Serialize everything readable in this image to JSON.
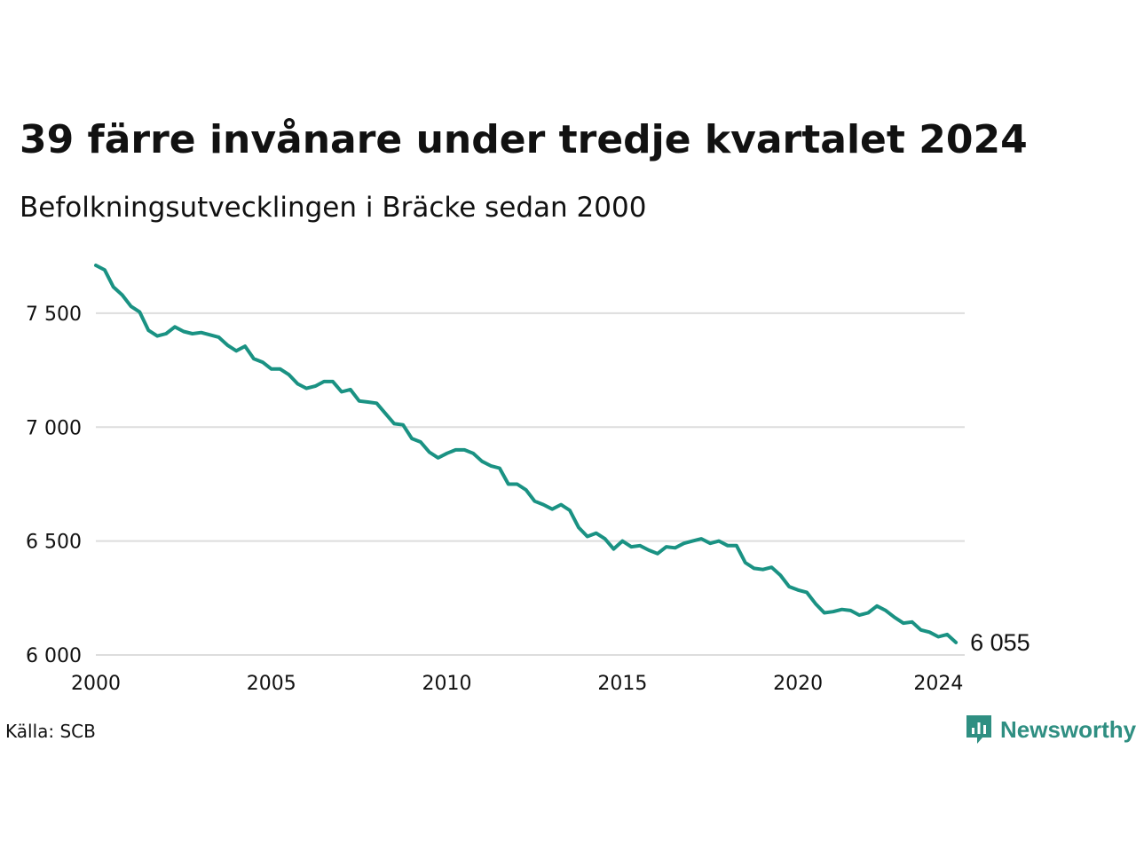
{
  "title": "39 färre invånare under tredje kvartalet 2024",
  "subtitle": "Befolkningsutvecklingen i Bräcke sedan 2000",
  "source": "Källa: SCB",
  "brand": {
    "name": "Newsworthy",
    "icon": "newsworthy-logo-icon",
    "color": "#2f8f82"
  },
  "chart_data": {
    "type": "line",
    "title": "39 färre invånare under tredje kvartalet 2024",
    "subtitle": "Befolkningsutvecklingen i Bräcke sedan 2000",
    "xlabel": "",
    "ylabel": "",
    "xlim": [
      2000,
      2024.75
    ],
    "ylim": [
      6000,
      7710
    ],
    "grid": true,
    "line_color": "#1a9283",
    "x_ticks": [
      {
        "value": 2000,
        "label": "2000"
      },
      {
        "value": 2005,
        "label": "2005"
      },
      {
        "value": 2010,
        "label": "2010"
      },
      {
        "value": 2015,
        "label": "2015"
      },
      {
        "value": 2020,
        "label": "2020"
      },
      {
        "value": 2024,
        "label": "2024"
      }
    ],
    "y_ticks": [
      {
        "value": 6000,
        "label": "6 000"
      },
      {
        "value": 6500,
        "label": "6 500"
      },
      {
        "value": 7000,
        "label": "7 000"
      },
      {
        "value": 7500,
        "label": "7 500"
      }
    ],
    "end_label": "6 055",
    "series": [
      {
        "start_year": 2000,
        "values_per_year": 4,
        "values": [
          7710,
          7690,
          7615,
          7580,
          7530,
          7505,
          7425,
          7400,
          7410,
          7440,
          7420,
          7410,
          7415,
          7405,
          7395,
          7360,
          7335,
          7355,
          7300,
          7285,
          7255,
          7255,
          7230,
          7190,
          7170,
          7180,
          7200,
          7200,
          7155,
          7165,
          7115,
          7110,
          7105,
          7060,
          7015,
          7010,
          6950,
          6935,
          6890,
          6865,
          6885,
          6900,
          6900,
          6885,
          6850,
          6830,
          6820,
          6750,
          6750,
          6725,
          6675,
          6660,
          6640,
          6660,
          6635,
          6560,
          6520,
          6535,
          6510,
          6465,
          6500,
          6475,
          6480,
          6460,
          6445,
          6475,
          6470,
          6490,
          6500,
          6510,
          6490,
          6500,
          6480,
          6480,
          6405,
          6380,
          6375,
          6385,
          6350,
          6300,
          6285,
          6275,
          6225,
          6185,
          6190,
          6200,
          6195,
          6175,
          6185,
          6215,
          6195,
          6165,
          6140,
          6145,
          6110,
          6100,
          6080,
          6090,
          6055
        ]
      }
    ]
  }
}
